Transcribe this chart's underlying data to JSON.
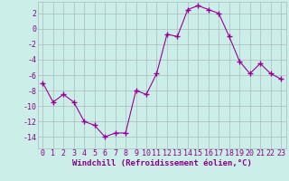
{
  "x": [
    0,
    1,
    2,
    3,
    4,
    5,
    6,
    7,
    8,
    9,
    10,
    11,
    12,
    13,
    14,
    15,
    16,
    17,
    18,
    19,
    20,
    21,
    22,
    23
  ],
  "y": [
    -7,
    -9.5,
    -8.5,
    -9.5,
    -12,
    -12.5,
    -14,
    -13.5,
    -13.5,
    -8,
    -8.5,
    -5.8,
    -0.7,
    -1,
    2.5,
    3,
    2.5,
    2,
    -1,
    -4.2,
    -5.8,
    -4.5,
    -5.8,
    -6.5
  ],
  "line_color": "#990099",
  "marker": "+",
  "marker_size": 4,
  "bg_color": "#cceee8",
  "grid_color": "#aabbbb",
  "xlabel": "Windchill (Refroidissement éolien,°C)",
  "xlim": [
    -0.5,
    23.5
  ],
  "ylim": [
    -15.5,
    3.5
  ],
  "yticks": [
    2,
    0,
    -2,
    -4,
    -6,
    -8,
    -10,
    -12,
    -14
  ],
  "xticks": [
    0,
    1,
    2,
    3,
    4,
    5,
    6,
    7,
    8,
    9,
    10,
    11,
    12,
    13,
    14,
    15,
    16,
    17,
    18,
    19,
    20,
    21,
    22,
    23
  ],
  "xlabel_fontsize": 6.5,
  "tick_fontsize": 6,
  "tick_color": "#880088",
  "line_width": 0.8
}
